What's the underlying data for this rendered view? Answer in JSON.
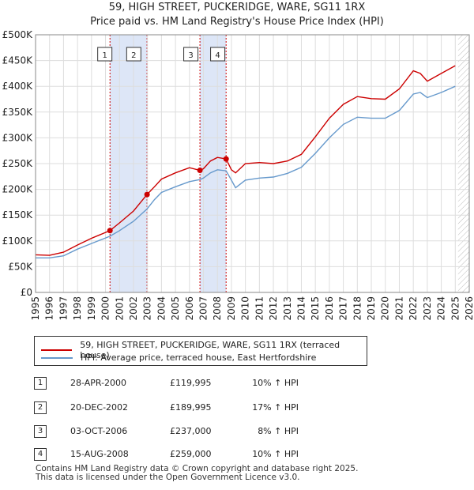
{
  "title_line1": "59, HIGH STREET, PUCKERIDGE, WARE, SG11 1RX",
  "title_line2": "Price paid vs. HM Land Registry's House Price Index (HPI)",
  "colors": {
    "property": "#cc0000",
    "hpi": "#6699cc",
    "shade": "#dde6f7",
    "grid": "#dddddd"
  },
  "chart_data": {
    "type": "line",
    "xlim": [
      1995,
      2026
    ],
    "ylim": [
      0,
      500000
    ],
    "x_ticks": [
      "1995",
      "1996",
      "1997",
      "1998",
      "1999",
      "2000",
      "2001",
      "2002",
      "2003",
      "2004",
      "2005",
      "2006",
      "2007",
      "2008",
      "2009",
      "2010",
      "2011",
      "2012",
      "2013",
      "2014",
      "2015",
      "2016",
      "2017",
      "2018",
      "2019",
      "2020",
      "2021",
      "2022",
      "2023",
      "2024",
      "2025",
      "2026"
    ],
    "y_ticks": [
      {
        "value": 0,
        "label": "£0"
      },
      {
        "value": 50000,
        "label": "£50K"
      },
      {
        "value": 100000,
        "label": "£100K"
      },
      {
        "value": 150000,
        "label": "£150K"
      },
      {
        "value": 200000,
        "label": "£200K"
      },
      {
        "value": 250000,
        "label": "£250K"
      },
      {
        "value": 300000,
        "label": "£300K"
      },
      {
        "value": 350000,
        "label": "£350K"
      },
      {
        "value": 400000,
        "label": "£400K"
      },
      {
        "value": 450000,
        "label": "£450K"
      },
      {
        "value": 500000,
        "label": "£500K"
      }
    ],
    "shaded_ranges": [
      [
        2000.32,
        2002.97
      ],
      [
        2006.75,
        2008.62
      ]
    ],
    "projection_start": 2025.2,
    "series": [
      {
        "name": "59, HIGH STREET, PUCKERIDGE, WARE, SG11 1RX (terraced house)",
        "color": "#cc0000",
        "x": [
          1995.0,
          1996.0,
          1997.0,
          1998.0,
          1999.0,
          2000.32,
          2001.0,
          2002.0,
          2002.97,
          2003.5,
          2004.0,
          2005.0,
          2006.0,
          2006.75,
          2007.0,
          2007.5,
          2008.0,
          2008.62,
          2009.0,
          2009.3,
          2010.0,
          2011.0,
          2012.0,
          2013.0,
          2014.0,
          2015.0,
          2016.0,
          2017.0,
          2018.0,
          2019.0,
          2020.0,
          2021.0,
          2022.0,
          2022.5,
          2023.0,
          2024.0,
          2025.0
        ],
        "y": [
          73000,
          72000,
          78000,
          92000,
          105000,
          119995,
          135000,
          158000,
          189995,
          205000,
          220000,
          232000,
          242000,
          237000,
          240000,
          255000,
          262000,
          259000,
          238000,
          232000,
          250000,
          252000,
          250000,
          255000,
          268000,
          302000,
          338000,
          365000,
          380000,
          376000,
          375000,
          395000,
          430000,
          425000,
          410000,
          425000,
          440000
        ]
      },
      {
        "name": "HPI: Average price, terraced house, East Hertfordshire",
        "color": "#6699cc",
        "x": [
          1995.0,
          1996.0,
          1997.0,
          1998.0,
          1999.0,
          2000.32,
          2001.0,
          2002.0,
          2002.97,
          2003.5,
          2004.0,
          2005.0,
          2006.0,
          2006.75,
          2007.0,
          2007.5,
          2008.0,
          2008.62,
          2009.0,
          2009.3,
          2010.0,
          2011.0,
          2012.0,
          2013.0,
          2014.0,
          2015.0,
          2016.0,
          2017.0,
          2018.0,
          2019.0,
          2020.0,
          2021.0,
          2022.0,
          2022.5,
          2023.0,
          2024.0,
          2025.0
        ],
        "y": [
          67000,
          67000,
          71000,
          84000,
          95000,
          109000,
          120000,
          138000,
          162000,
          180000,
          194000,
          205000,
          215000,
          219000,
          222000,
          232000,
          238000,
          236000,
          218000,
          203000,
          218000,
          222000,
          224000,
          231000,
          243000,
          270000,
          300000,
          326000,
          340000,
          338000,
          338000,
          353000,
          385000,
          388000,
          378000,
          388000,
          400000
        ]
      }
    ],
    "sales": [
      {
        "label": "1",
        "x": 2000.32,
        "y": 119995
      },
      {
        "label": "2",
        "x": 2002.97,
        "y": 189995
      },
      {
        "label": "3",
        "x": 2006.75,
        "y": 237000
      },
      {
        "label": "4",
        "x": 2008.62,
        "y": 259000
      }
    ]
  },
  "legend": {
    "property": "59, HIGH STREET, PUCKERIDGE, WARE, SG11 1RX (terraced house)",
    "hpi": "HPI: Average price, terraced house, East Hertfordshire"
  },
  "transactions": [
    {
      "num": "1",
      "date": "28-APR-2000",
      "price": "£119,995",
      "hpi": "10% ↑ HPI"
    },
    {
      "num": "2",
      "date": "20-DEC-2002",
      "price": "£189,995",
      "hpi": "17% ↑ HPI"
    },
    {
      "num": "3",
      "date": "03-OCT-2006",
      "price": "£237,000",
      "hpi": "8% ↑ HPI"
    },
    {
      "num": "4",
      "date": "15-AUG-2008",
      "price": "£259,000",
      "hpi": "10% ↑ HPI"
    }
  ],
  "footer": {
    "line1": "Contains HM Land Registry data © Crown copyright and database right 2025.",
    "line2": "This data is licensed under the Open Government Licence v3.0."
  }
}
